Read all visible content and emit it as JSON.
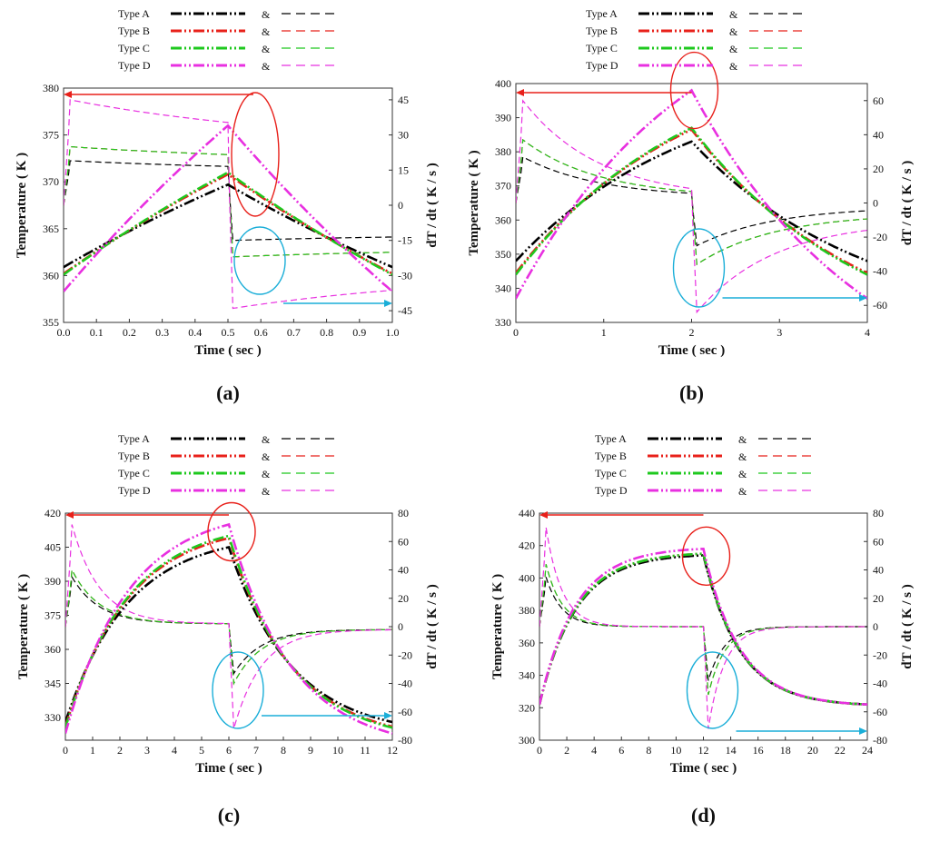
{
  "legend": {
    "amp": "&",
    "entries": [
      {
        "name": "Type A",
        "color": "#000000"
      },
      {
        "name": "Type B",
        "color": "#e8201a"
      },
      {
        "name": "Type C",
        "color": "#1ec81e"
      },
      {
        "name": "Type D",
        "color": "#e830e0"
      }
    ]
  },
  "annotation_colors": {
    "left_arrow": "#e8201a",
    "right_arrow": "#1aaed8"
  },
  "chart_data": [
    {
      "type": "line",
      "panel_label": "(a)",
      "xlabel": "Time ( sec )",
      "ylabel": "Temperature ( K )",
      "y2label": "dT / dt ( K / s )",
      "xlim": [
        0,
        1.0
      ],
      "ylim": [
        355,
        380
      ],
      "y2lim": [
        -50,
        50
      ],
      "x_ticks": [
        "0.0",
        "0.1",
        "0.2",
        "0.3",
        "0.4",
        "0.5",
        "0.6",
        "0.7",
        "0.8",
        "0.9",
        "1.0"
      ],
      "y_ticks": [
        "355",
        "360",
        "365",
        "370",
        "375",
        "380"
      ],
      "y2_ticks": [
        "-45",
        "-30",
        "-15",
        "0",
        "15",
        "30",
        "45"
      ],
      "period": 1.0,
      "series_temperature": [
        {
          "name": "Type A",
          "color": "#000000",
          "min": 360.9,
          "max": 369.7
        },
        {
          "name": "Type B",
          "color": "#e8201a",
          "min": 360.2,
          "max": 370.8
        },
        {
          "name": "Type C",
          "color": "#1ec81e",
          "min": 360.1,
          "max": 371.0
        },
        {
          "name": "Type D",
          "color": "#e830e0",
          "min": 358.3,
          "max": 376.0
        }
      ],
      "series_rate": [
        {
          "name": "Type A",
          "color": "#000000",
          "peak": 19,
          "heat_end": 14,
          "cool_min": -15,
          "cool_end": -12
        },
        {
          "name": "Type B",
          "color": "#e8201a",
          "peak": 25,
          "heat_end": 18,
          "cool_min": -22,
          "cool_end": -18
        },
        {
          "name": "Type C",
          "color": "#1ec81e",
          "peak": 25,
          "heat_end": 18,
          "cool_min": -22,
          "cool_end": -18
        },
        {
          "name": "Type D",
          "color": "#e830e0",
          "peak": 45,
          "heat_end": 25,
          "cool_min": -44,
          "cool_end": -28
        }
      ]
    },
    {
      "type": "line",
      "panel_label": "(b)",
      "xlabel": "Time ( sec )",
      "ylabel": "Temperature ( K )",
      "y2label": "dT / dt ( K / s )",
      "xlim": [
        0,
        4
      ],
      "ylim": [
        330,
        400
      ],
      "y2lim": [
        -70,
        70
      ],
      "x_ticks": [
        "0",
        "1",
        "2",
        "3",
        "4"
      ],
      "y_ticks": [
        "330",
        "340",
        "350",
        "360",
        "370",
        "380",
        "390",
        "400"
      ],
      "y2_ticks": [
        "-60",
        "-40",
        "-20",
        "0",
        "20",
        "40",
        "60"
      ],
      "period": 4,
      "series_temperature": [
        {
          "name": "Type A",
          "color": "#000000",
          "min": 348.0,
          "max": 383.0
        },
        {
          "name": "Type B",
          "color": "#e8201a",
          "min": 344.5,
          "max": 386.5
        },
        {
          "name": "Type C",
          "color": "#1ec81e",
          "min": 344.0,
          "max": 387.0
        },
        {
          "name": "Type D",
          "color": "#e830e0",
          "min": 337.0,
          "max": 398.0
        }
      ],
      "series_rate": [
        {
          "name": "Type A",
          "color": "#000000",
          "peak": 27,
          "heat_end": 3,
          "cool_min": -25,
          "cool_end": -2
        },
        {
          "name": "Type B",
          "color": "#e8201a",
          "peak": 37,
          "heat_end": 3,
          "cool_min": -36,
          "cool_end": -6
        },
        {
          "name": "Type C",
          "color": "#1ec81e",
          "peak": 37,
          "heat_end": 3,
          "cool_min": -36,
          "cool_end": -6
        },
        {
          "name": "Type D",
          "color": "#e830e0",
          "peak": 60,
          "heat_end": 2,
          "cool_min": -64,
          "cool_end": -10
        }
      ]
    },
    {
      "type": "line",
      "panel_label": "(c)",
      "xlabel": "Time ( sec )",
      "ylabel": "Temperature ( K )",
      "y2label": "dT / dt ( K / s )",
      "xlim": [
        0,
        12
      ],
      "ylim": [
        320,
        420
      ],
      "y2lim": [
        -80,
        80
      ],
      "x_ticks": [
        "0",
        "1",
        "2",
        "3",
        "4",
        "5",
        "6",
        "7",
        "8",
        "9",
        "10",
        "11",
        "12"
      ],
      "y_ticks": [
        "330",
        "345",
        "360",
        "375",
        "390",
        "405",
        "420"
      ],
      "y2_ticks": [
        "-80",
        "-60",
        "-40",
        "-20",
        "0",
        "20",
        "40",
        "60",
        "80"
      ],
      "period": 12,
      "series_temperature": [
        {
          "name": "Type A",
          "color": "#000000",
          "min": 328.0,
          "max": 405.0
        },
        {
          "name": "Type B",
          "color": "#e8201a",
          "min": 326.0,
          "max": 409.0
        },
        {
          "name": "Type C",
          "color": "#1ec81e",
          "min": 325.5,
          "max": 410.0
        },
        {
          "name": "Type D",
          "color": "#e830e0",
          "min": 323.0,
          "max": 415.0
        }
      ],
      "series_rate": [
        {
          "name": "Type A",
          "color": "#000000",
          "peak": 35,
          "heat_end": 2,
          "cool_min": -33,
          "cool_end": -2
        },
        {
          "name": "Type B",
          "color": "#e8201a",
          "peak": 40,
          "heat_end": 2,
          "cool_min": -40,
          "cool_end": -2
        },
        {
          "name": "Type C",
          "color": "#1ec81e",
          "peak": 40,
          "heat_end": 2,
          "cool_min": -40,
          "cool_end": -2
        },
        {
          "name": "Type D",
          "color": "#e830e0",
          "peak": 72,
          "heat_end": 2,
          "cool_min": -72,
          "cool_end": -2
        }
      ]
    },
    {
      "type": "line",
      "panel_label": "(d)",
      "xlabel": "Time ( sec )",
      "ylabel": "Temperature ( K )",
      "y2label": "dT / dt ( K / s )",
      "xlim": [
        0,
        24
      ],
      "ylim": [
        300,
        440
      ],
      "y2lim": [
        -80,
        80
      ],
      "x_ticks": [
        "0",
        "2",
        "4",
        "6",
        "8",
        "10",
        "12",
        "14",
        "16",
        "18",
        "20",
        "22",
        "24"
      ],
      "y_ticks": [
        "300",
        "320",
        "340",
        "360",
        "380",
        "400",
        "420",
        "440"
      ],
      "y2_ticks": [
        "-80",
        "-60",
        "-40",
        "-20",
        "0",
        "20",
        "40",
        "60",
        "80"
      ],
      "period": 24,
      "series_temperature": [
        {
          "name": "Type A",
          "color": "#000000",
          "min": 322.0,
          "max": 414.0
        },
        {
          "name": "Type B",
          "color": "#e8201a",
          "min": 322.0,
          "max": 415.0
        },
        {
          "name": "Type C",
          "color": "#1ec81e",
          "min": 322.0,
          "max": 415.0
        },
        {
          "name": "Type D",
          "color": "#e830e0",
          "min": 322.0,
          "max": 418.0
        }
      ],
      "series_rate": [
        {
          "name": "Type A",
          "color": "#000000",
          "peak": 35,
          "heat_end": 0,
          "cool_min": -38,
          "cool_end": 0
        },
        {
          "name": "Type B",
          "color": "#e8201a",
          "peak": 44,
          "heat_end": 0,
          "cool_min": -48,
          "cool_end": 0
        },
        {
          "name": "Type C",
          "color": "#1ec81e",
          "peak": 44,
          "heat_end": 0,
          "cool_min": -48,
          "cool_end": 0
        },
        {
          "name": "Type D",
          "color": "#e830e0",
          "peak": 70,
          "heat_end": 0,
          "cool_min": -72,
          "cool_end": 0
        }
      ]
    }
  ]
}
